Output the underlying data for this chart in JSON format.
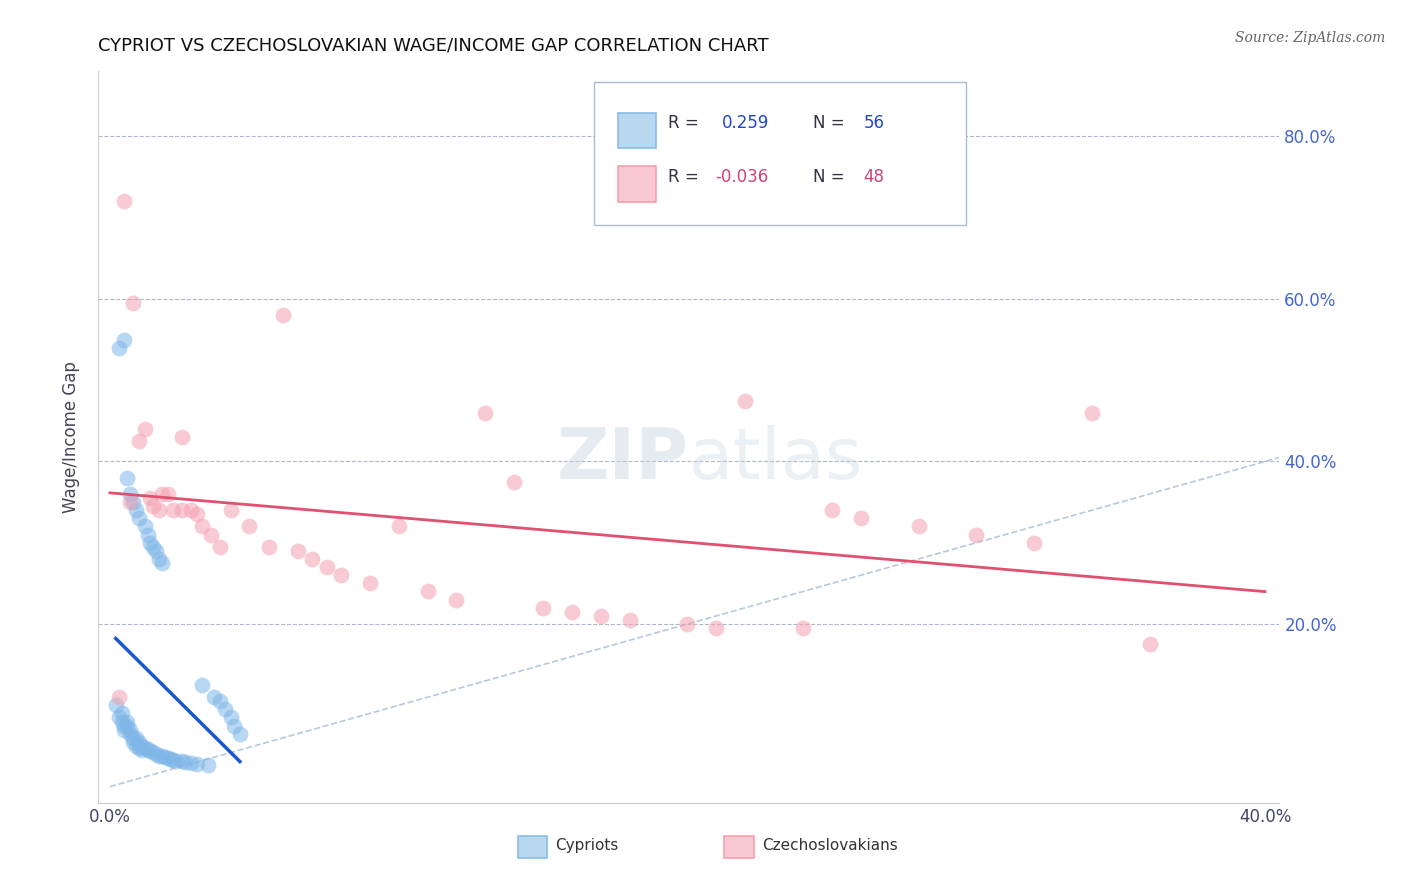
{
  "title": "CYPRIOT VS CZECHOSLOVAKIAN WAGE/INCOME GAP CORRELATION CHART",
  "source": "Source: ZipAtlas.com",
  "ylabel": "Wage/Income Gap",
  "cypriot_color": "#7EB6E8",
  "czechoslovakian_color": "#F4A0B0",
  "trend_blue": "#1A56CC",
  "trend_pink": "#E05070",
  "diag_color": "#B8C8DC",
  "watermark": "ZIPatlas",
  "xlim": [
    0.0,
    0.4
  ],
  "ylim": [
    0.0,
    0.85
  ],
  "ytick_values": [
    0.2,
    0.4,
    0.6,
    0.8
  ],
  "cypriot_x": [
    0.002,
    0.003,
    0.003,
    0.004,
    0.004,
    0.005,
    0.005,
    0.005,
    0.006,
    0.006,
    0.006,
    0.007,
    0.007,
    0.007,
    0.008,
    0.008,
    0.008,
    0.009,
    0.009,
    0.009,
    0.01,
    0.01,
    0.01,
    0.011,
    0.011,
    0.012,
    0.012,
    0.013,
    0.013,
    0.014,
    0.014,
    0.015,
    0.015,
    0.016,
    0.016,
    0.017,
    0.017,
    0.018,
    0.018,
    0.019,
    0.02,
    0.021,
    0.022,
    0.023,
    0.025,
    0.026,
    0.028,
    0.03,
    0.032,
    0.034,
    0.036,
    0.038,
    0.04,
    0.042,
    0.043,
    0.045
  ],
  "cypriot_y": [
    0.1,
    0.085,
    0.54,
    0.09,
    0.08,
    0.075,
    0.07,
    0.55,
    0.08,
    0.075,
    0.38,
    0.07,
    0.065,
    0.36,
    0.06,
    0.055,
    0.35,
    0.06,
    0.05,
    0.34,
    0.055,
    0.048,
    0.33,
    0.05,
    0.045,
    0.048,
    0.32,
    0.046,
    0.31,
    0.044,
    0.3,
    0.042,
    0.295,
    0.04,
    0.29,
    0.038,
    0.28,
    0.037,
    0.275,
    0.036,
    0.035,
    0.034,
    0.033,
    0.032,
    0.031,
    0.03,
    0.029,
    0.028,
    0.125,
    0.027,
    0.11,
    0.105,
    0.095,
    0.085,
    0.075,
    0.065
  ],
  "czechoslovakian_x": [
    0.003,
    0.005,
    0.007,
    0.008,
    0.01,
    0.012,
    0.014,
    0.015,
    0.017,
    0.018,
    0.02,
    0.022,
    0.025,
    0.025,
    0.028,
    0.03,
    0.032,
    0.035,
    0.038,
    0.042,
    0.048,
    0.055,
    0.06,
    0.065,
    0.07,
    0.075,
    0.08,
    0.09,
    0.1,
    0.11,
    0.12,
    0.13,
    0.14,
    0.15,
    0.16,
    0.17,
    0.18,
    0.2,
    0.21,
    0.22,
    0.24,
    0.25,
    0.26,
    0.28,
    0.3,
    0.32,
    0.34,
    0.36
  ],
  "czechoslovakian_y": [
    0.11,
    0.72,
    0.35,
    0.595,
    0.425,
    0.44,
    0.355,
    0.345,
    0.34,
    0.36,
    0.36,
    0.34,
    0.43,
    0.34,
    0.34,
    0.335,
    0.32,
    0.31,
    0.295,
    0.34,
    0.32,
    0.295,
    0.58,
    0.29,
    0.28,
    0.27,
    0.26,
    0.25,
    0.32,
    0.24,
    0.23,
    0.46,
    0.375,
    0.22,
    0.215,
    0.21,
    0.205,
    0.2,
    0.195,
    0.475,
    0.195,
    0.34,
    0.33,
    0.32,
    0.31,
    0.3,
    0.46,
    0.175
  ]
}
